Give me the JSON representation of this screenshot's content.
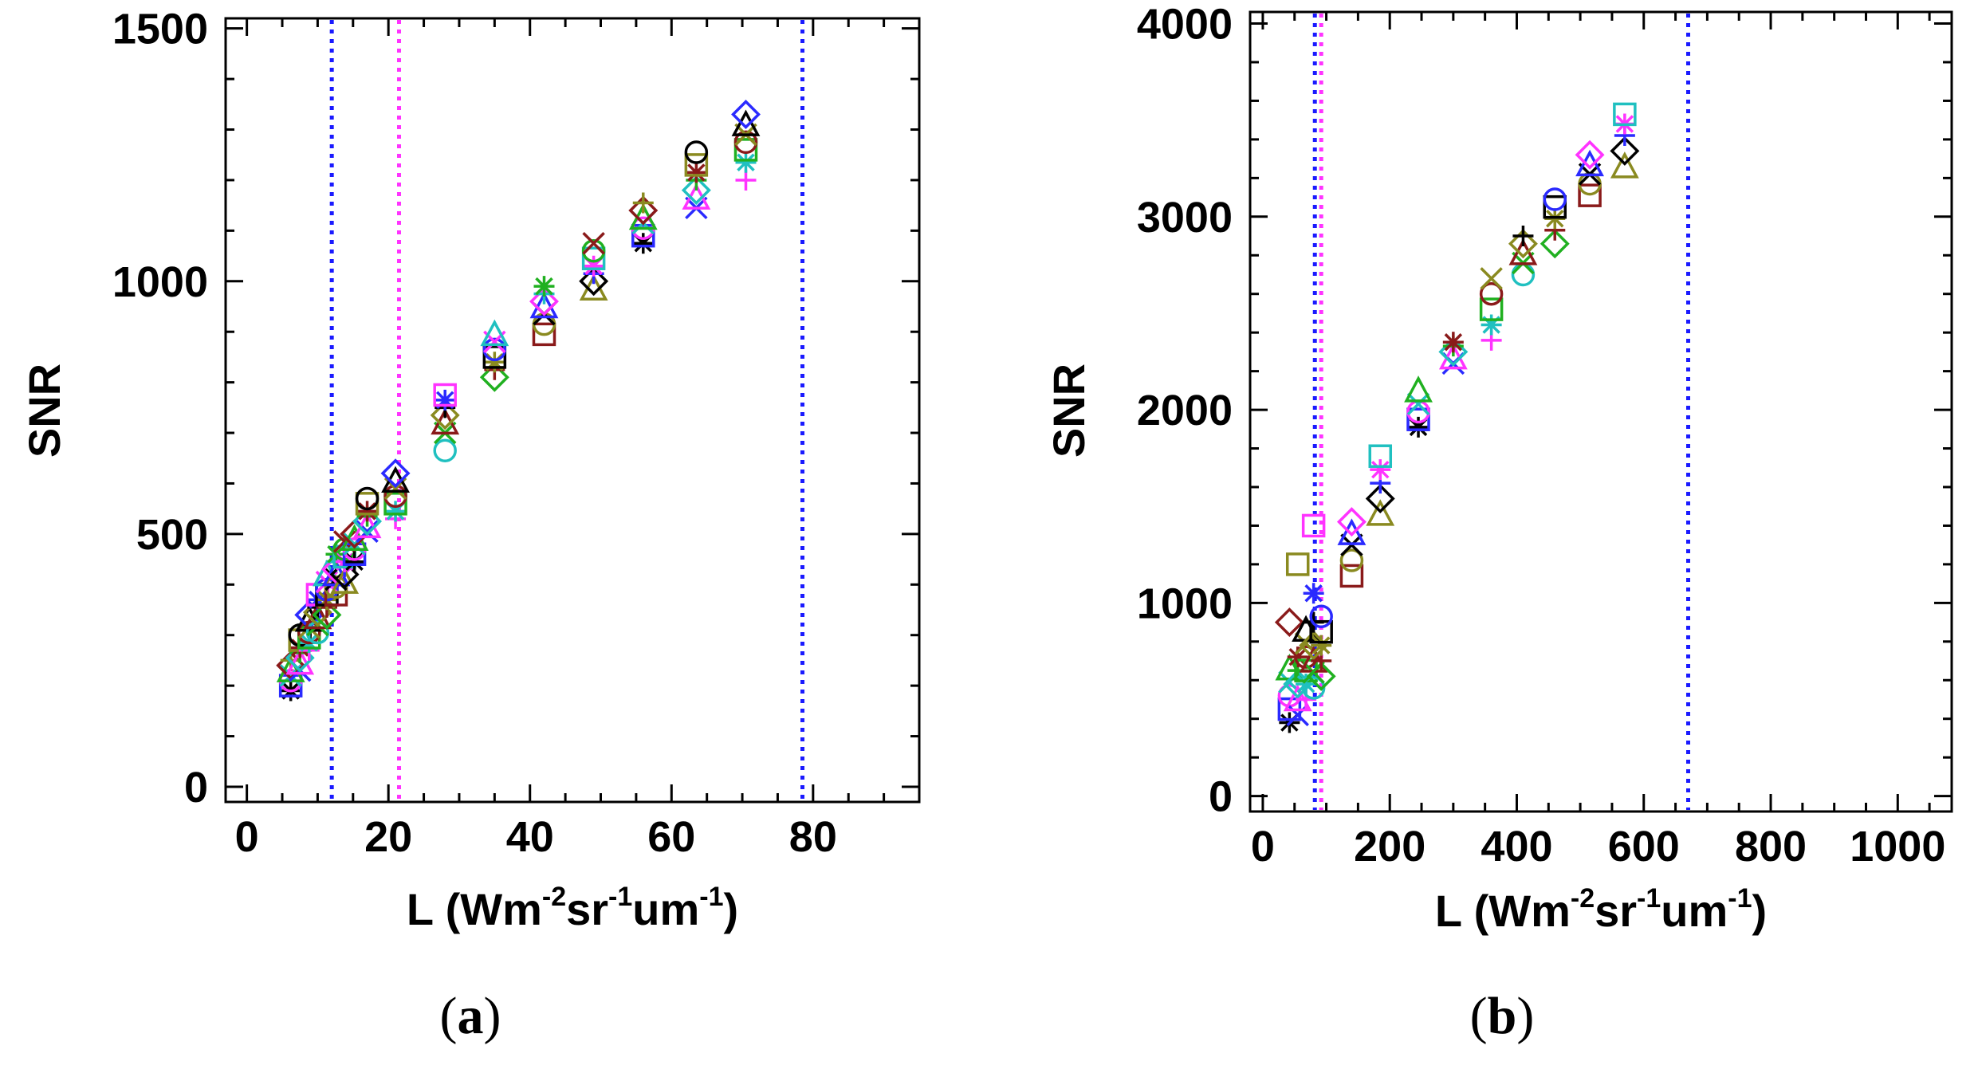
{
  "chart_data": [
    {
      "panel": "a",
      "type": "scatter",
      "caption_paren_open": "(",
      "caption_letter": "a",
      "caption_paren_close": ")",
      "ylabel": "SNR",
      "xlabel_prefix": "L (Wm",
      "xlabel_exp1": "-2",
      "xlabel_mid": "sr",
      "xlabel_exp2": "-1",
      "xlabel_mid2": "um",
      "xlabel_exp3": "-1",
      "xlabel_suffix": ")",
      "xlim": [
        -3,
        95
      ],
      "ylim": [
        -30,
        1520
      ],
      "xticks": [
        0,
        20,
        40,
        60,
        80
      ],
      "yticks": [
        0,
        500,
        1000,
        1500
      ],
      "xtick_labels": [
        "0",
        "20",
        "40",
        "60",
        "80"
      ],
      "ytick_labels": [
        "0",
        "500",
        "1000",
        "1500"
      ],
      "vlines": [
        {
          "x": 12,
          "color": "#1a1aff"
        },
        {
          "x": 21.5,
          "color": "#ff33ff"
        },
        {
          "x": 78.5,
          "color": "#1a1aff"
        }
      ],
      "points": [
        {
          "x": 6.2,
          "ys": [
            190,
            200,
            210,
            220,
            230,
            240,
            250
          ]
        },
        {
          "x": 7.5,
          "ys": [
            230,
            245,
            255,
            265,
            275,
            290,
            300
          ]
        },
        {
          "x": 8.8,
          "ys": [
            270,
            285,
            295,
            305,
            315,
            330,
            340
          ]
        },
        {
          "x": 10.0,
          "ys": [
            305,
            320,
            335,
            345,
            355,
            370,
            380
          ]
        },
        {
          "x": 11.3,
          "ys": [
            340,
            355,
            370,
            380,
            390,
            405,
            420
          ]
        },
        {
          "x": 12.6,
          "ys": [
            380,
            395,
            410,
            420,
            430,
            445,
            460
          ]
        },
        {
          "x": 13.8,
          "ys": [
            405,
            420,
            435,
            445,
            455,
            470,
            485
          ]
        },
        {
          "x": 15.2,
          "ys": [
            445,
            460,
            470,
            480,
            490,
            500
          ]
        },
        {
          "x": 17.0,
          "ys": [
            505,
            515,
            525,
            535,
            545,
            560,
            570
          ]
        },
        {
          "x": 21.0,
          "ys": [
            530,
            545,
            560,
            575,
            590,
            605,
            620
          ]
        },
        {
          "x": 28.0,
          "ys": [
            665,
            700,
            720,
            735,
            750,
            765,
            775
          ]
        },
        {
          "x": 35.0,
          "ys": [
            810,
            825,
            840,
            850,
            865,
            880,
            895
          ]
        },
        {
          "x": 42.0,
          "ys": [
            895,
            915,
            935,
            950,
            960,
            975,
            990
          ]
        },
        {
          "x": 49.0,
          "ys": [
            985,
            1000,
            1015,
            1030,
            1045,
            1060,
            1075
          ]
        },
        {
          "x": 56.0,
          "ys": [
            1075,
            1090,
            1105,
            1115,
            1125,
            1140,
            1155
          ]
        },
        {
          "x": 63.5,
          "ys": [
            1145,
            1165,
            1180,
            1200,
            1215,
            1230,
            1255
          ]
        },
        {
          "x": 70.5,
          "ys": [
            1200,
            1235,
            1260,
            1275,
            1290,
            1310,
            1330
          ]
        }
      ]
    },
    {
      "panel": "b",
      "type": "scatter",
      "caption_paren_open": "(",
      "caption_letter": "b",
      "caption_paren_close": ")",
      "ylabel": "SNR",
      "xlabel_prefix": "L (Wm",
      "xlabel_exp1": "-2",
      "xlabel_mid": "sr",
      "xlabel_exp2": "-1",
      "xlabel_mid2": "um",
      "xlabel_exp3": "-1",
      "xlabel_suffix": ")",
      "xlim": [
        -20,
        1085
      ],
      "ylim": [
        -80,
        4060
      ],
      "xticks": [
        0,
        200,
        400,
        600,
        800,
        1000
      ],
      "yticks": [
        0,
        1000,
        2000,
        3000,
        4000
      ],
      "xtick_labels": [
        "0",
        "200",
        "400",
        "600",
        "800",
        "1000"
      ],
      "ytick_labels": [
        "0",
        "1000",
        "2000",
        "3000",
        "4000"
      ],
      "vlines": [
        {
          "x": 82,
          "color": "#1a1aff"
        },
        {
          "x": 92,
          "color": "#ff33ff"
        },
        {
          "x": 670,
          "color": "#1a1aff"
        }
      ],
      "points": [
        {
          "x": 42,
          "ys": [
            380,
            450,
            520,
            590,
            660,
            900
          ]
        },
        {
          "x": 55,
          "ys": [
            420,
            500,
            580,
            650,
            720,
            1200
          ]
        },
        {
          "x": 68,
          "ys": [
            500,
            580,
            650,
            720,
            790,
            860
          ]
        },
        {
          "x": 80,
          "ys": [
            560,
            640,
            700,
            780,
            900,
            1050,
            1400
          ]
        },
        {
          "x": 92,
          "ys": [
            620,
            700,
            780,
            850,
            930
          ]
        },
        {
          "x": 140,
          "ys": [
            1140,
            1220,
            1300,
            1360,
            1420
          ]
        },
        {
          "x": 185,
          "ys": [
            1460,
            1540,
            1620,
            1690,
            1760
          ]
        },
        {
          "x": 245,
          "ys": [
            1910,
            1950,
            1990,
            2030,
            2100
          ]
        },
        {
          "x": 300,
          "ys": [
            2240,
            2270,
            2300,
            2330,
            2350
          ]
        },
        {
          "x": 360,
          "ys": [
            2360,
            2440,
            2520,
            2600,
            2680
          ]
        },
        {
          "x": 410,
          "ys": [
            2700,
            2760,
            2810,
            2860,
            2900
          ]
        },
        {
          "x": 460,
          "ys": [
            2860,
            2930,
            2990,
            3050,
            3090
          ]
        },
        {
          "x": 515,
          "ys": [
            3110,
            3170,
            3220,
            3270,
            3320
          ]
        },
        {
          "x": 570,
          "ys": [
            3260,
            3340,
            3420,
            3480,
            3530
          ]
        }
      ]
    }
  ],
  "marker_colors": [
    "#000000",
    "#2a2aff",
    "#ff33ff",
    "#20c0c0",
    "#20b020",
    "#8a1a1a",
    "#8a8a20"
  ],
  "marker_shapes": [
    "star",
    "square",
    "circle",
    "x",
    "triangle",
    "diamond",
    "plus"
  ]
}
